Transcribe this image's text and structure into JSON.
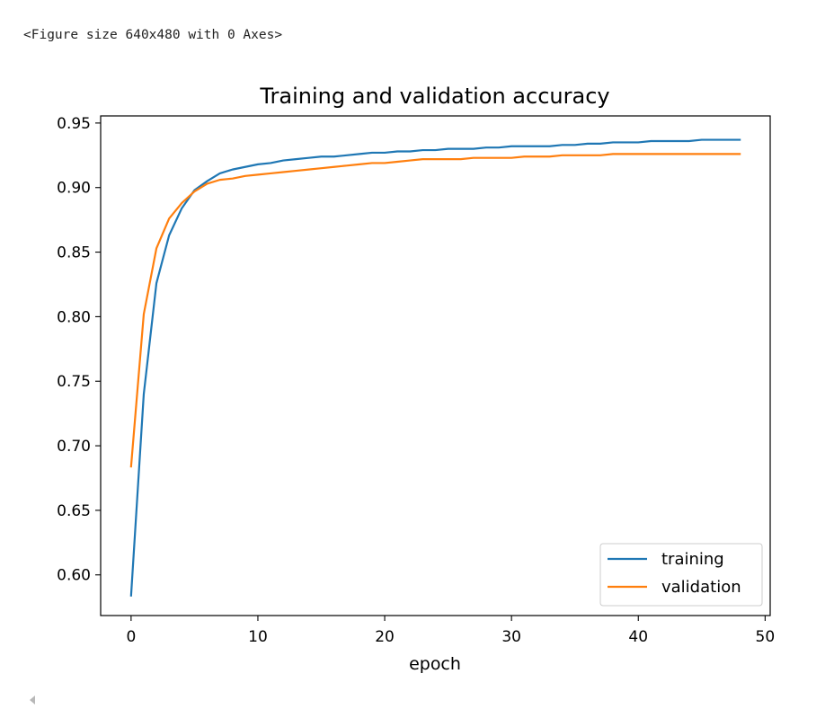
{
  "output": {
    "figure_repr": "<Figure size 640x480 with 0 Axes>"
  },
  "chart_data": {
    "type": "line",
    "title": "Training and validation accuracy",
    "xlabel": "epoch",
    "ylabel": "",
    "xlim": [
      -2.4,
      50.4
    ],
    "ylim": [
      0.5685,
      0.9555
    ],
    "xticks": [
      0,
      10,
      20,
      30,
      40,
      50
    ],
    "yticks": [
      0.6,
      0.65,
      0.7,
      0.75,
      0.8,
      0.85,
      0.9,
      0.95
    ],
    "xtick_labels": [
      "0",
      "10",
      "20",
      "30",
      "40",
      "50"
    ],
    "ytick_labels": [
      "0.60",
      "0.65",
      "0.70",
      "0.75",
      "0.80",
      "0.85",
      "0.90",
      "0.95"
    ],
    "grid": false,
    "legend_position": "lower-right",
    "x": [
      0,
      1,
      2,
      3,
      4,
      5,
      6,
      7,
      8,
      9,
      10,
      11,
      12,
      13,
      14,
      15,
      16,
      17,
      18,
      19,
      20,
      21,
      22,
      23,
      24,
      25,
      26,
      27,
      28,
      29,
      30,
      31,
      32,
      33,
      34,
      35,
      36,
      37,
      38,
      39,
      40,
      41,
      42,
      43,
      44,
      45,
      46,
      47,
      48
    ],
    "series": [
      {
        "name": "training",
        "color": "#1f77b4",
        "values": [
          0.584,
          0.74,
          0.826,
          0.863,
          0.884,
          0.898,
          0.905,
          0.911,
          0.914,
          0.916,
          0.918,
          0.919,
          0.921,
          0.922,
          0.923,
          0.924,
          0.924,
          0.925,
          0.926,
          0.927,
          0.927,
          0.928,
          0.928,
          0.929,
          0.929,
          0.93,
          0.93,
          0.93,
          0.931,
          0.931,
          0.932,
          0.932,
          0.932,
          0.932,
          0.933,
          0.933,
          0.934,
          0.934,
          0.935,
          0.935,
          0.935,
          0.936,
          0.936,
          0.936,
          0.936,
          0.937,
          0.937,
          0.937,
          0.937
        ]
      },
      {
        "name": "validation",
        "color": "#ff7f0e",
        "values": [
          0.684,
          0.802,
          0.853,
          0.876,
          0.888,
          0.897,
          0.903,
          0.906,
          0.907,
          0.909,
          0.91,
          0.911,
          0.912,
          0.913,
          0.914,
          0.915,
          0.916,
          0.917,
          0.918,
          0.919,
          0.919,
          0.92,
          0.921,
          0.922,
          0.922,
          0.922,
          0.922,
          0.923,
          0.923,
          0.923,
          0.923,
          0.924,
          0.924,
          0.924,
          0.925,
          0.925,
          0.925,
          0.925,
          0.926,
          0.926,
          0.926,
          0.926,
          0.926,
          0.926,
          0.926,
          0.926,
          0.926,
          0.926,
          0.926
        ]
      }
    ]
  }
}
